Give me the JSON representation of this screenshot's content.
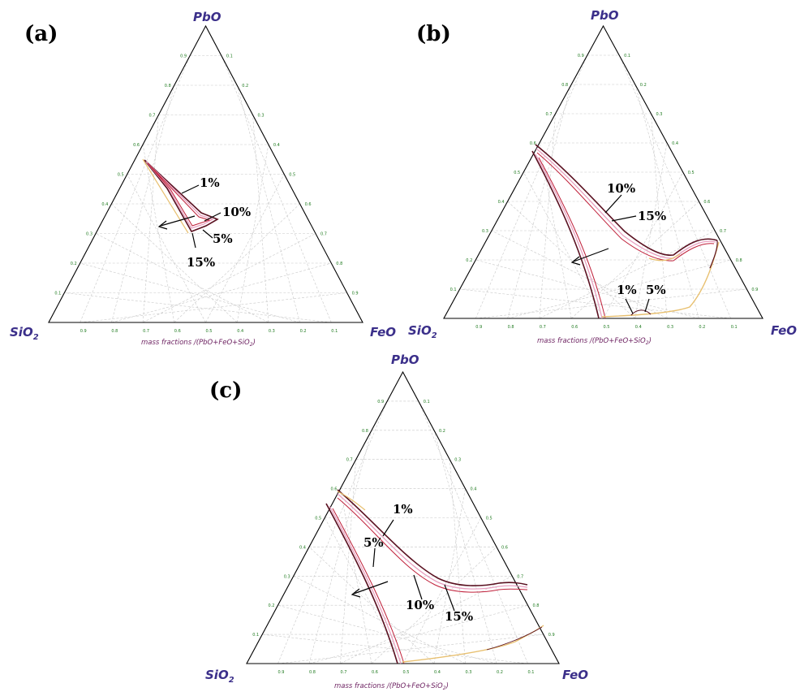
{
  "figure": {
    "panels": [
      {
        "label": "(a)",
        "vertices": {
          "top": "PbO",
          "left": "SiO",
          "left_sub": "2",
          "right": "FeO"
        },
        "caption": "mass fractions /(PbO+FeO+SiO",
        "caption_sub": "2",
        "caption_end": ")",
        "annotations": [
          "1%",
          "10%",
          "5%",
          "15%"
        ]
      },
      {
        "label": "(b)",
        "vertices": {
          "top": "PbO",
          "left": "SiO",
          "left_sub": "2",
          "right": "FeO"
        },
        "caption": "mass fractions /(PbO+FeO+SiO",
        "caption_sub": "2",
        "caption_end": ")",
        "annotations": [
          "10%",
          "15%",
          "1%",
          "5%"
        ]
      },
      {
        "label": "(c)",
        "vertices": {
          "top": "PbO",
          "left": "SiO",
          "left_sub": "2",
          "right": "FeO"
        },
        "caption": "mass fractions /(PbO+FeO+SiO",
        "caption_sub": "2",
        "caption_end": ")",
        "annotations": [
          "1%",
          "5%",
          "10%",
          "15%"
        ]
      }
    ],
    "tick_values": [
      "0.1",
      "0.2",
      "0.3",
      "0.4",
      "0.5",
      "0.6",
      "0.7",
      "0.8",
      "0.9"
    ],
    "colors": {
      "vertex": "#3b2f8a",
      "caption": "#6b1f5f",
      "ticks": "#1f7a1f",
      "grid": "#c8c8c8",
      "curve_outer": "#5a1020",
      "curve_mid": "#e8a0c0",
      "curve_inner": "#c0203a",
      "curve_light": "#e8c070"
    }
  }
}
